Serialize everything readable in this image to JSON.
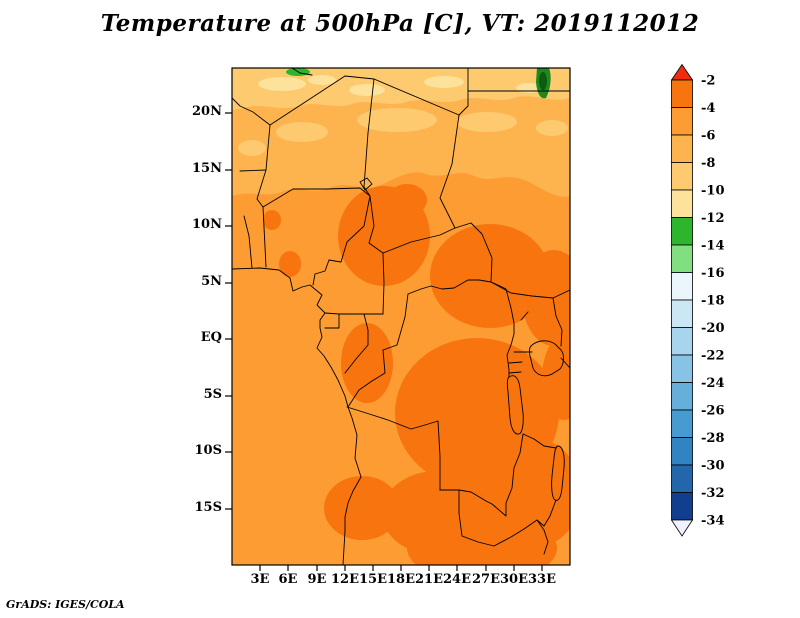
{
  "title": "Temperature at 500hPa [C], VT: 2019112012",
  "attribution": "GrADS: IGES/COLA",
  "axes": {
    "lat_labels": [
      "20N",
      "15N",
      "10N",
      "5N",
      "EQ",
      "5S",
      "10S",
      "15S"
    ],
    "lon_labels": [
      "3E",
      "6E",
      "9E",
      "12E",
      "15E",
      "18E",
      "21E",
      "24E",
      "27E",
      "30E",
      "33E"
    ]
  },
  "colorbar": {
    "labels": [
      "-2",
      "-4",
      "-6",
      "-8",
      "-10",
      "-12",
      "-14",
      "-16",
      "-18",
      "-20",
      "-22",
      "-24",
      "-26",
      "-28",
      "-30",
      "-32",
      "-34"
    ],
    "segment_colors": [
      "#F7740E",
      "#FC9C33",
      "#FDB44E",
      "#FDCA70",
      "#FCE29B",
      "#2DB52D",
      "#81DE81",
      "#EAF5FC",
      "#CBE6F5",
      "#A9D4ED",
      "#88C2E4",
      "#66AFDB",
      "#469BD1",
      "#3184C2",
      "#2366AB",
      "#123E8F"
    ],
    "arrow_top_color": "#EE2C10",
    "arrow_bottom_color": "#F2F2FE"
  },
  "chart_data": {
    "type": "heatmap",
    "title": "Temperature at 500hPa [C], VT: 2019112012",
    "variable": "Temperature",
    "level": "500hPa",
    "units": "C",
    "valid_time": "2019112012",
    "x_ticks": [
      "3E",
      "6E",
      "9E",
      "12E",
      "15E",
      "18E",
      "21E",
      "24E",
      "27E",
      "30E",
      "33E"
    ],
    "y_ticks": [
      "20N",
      "15N",
      "10N",
      "5N",
      "EQ",
      "5S",
      "10S",
      "15S"
    ],
    "legend_levels_C": [
      -2,
      -4,
      -6,
      -8,
      -10,
      -12,
      -14,
      -16,
      -18,
      -20,
      -22,
      -24,
      -26,
      -28,
      -30,
      -32,
      -34
    ],
    "legend_colors": [
      "#F7740E",
      "#FC9C33",
      "#FDB44E",
      "#FDCA70",
      "#FCE29B",
      "#2DB52D",
      "#81DE81",
      "#EAF5FC",
      "#CBE6F5",
      "#A9D4ED",
      "#88C2E4",
      "#66AFDB",
      "#469BD1",
      "#3184C2",
      "#2366AB",
      "#123E8F"
    ],
    "field_summary": "Shaded 500hPa temperature over central Africa: mostly -2 to -6 C (orange) with darker -2 to -4 C patches through the center and south, a lighter -6 to -12 C band across the north, and small -12 C and colder (green) spots along the northern edge."
  }
}
